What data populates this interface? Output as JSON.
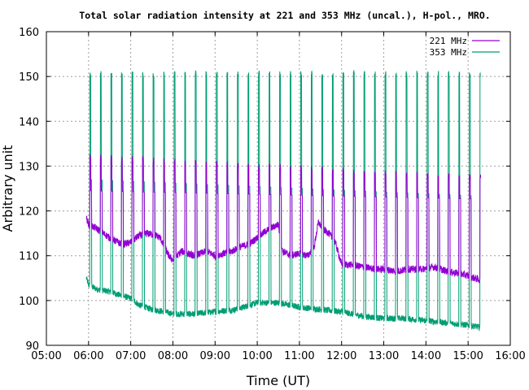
{
  "chart_data": {
    "type": "line",
    "title": "Total solar radiation intensity at 221 and 353 MHz (uncal.), H-pol., MRO.",
    "xlabel": "Time (UT)",
    "ylabel": "Arbitrary unit",
    "x_unit": "hours UT",
    "xlim": [
      5,
      16
    ],
    "ylim": [
      90,
      160
    ],
    "xticks": [
      5,
      6,
      7,
      8,
      9,
      10,
      11,
      12,
      13,
      14,
      15,
      16
    ],
    "xtick_labels": [
      "05:00",
      "06:00",
      "07:00",
      "08:00",
      "09:00",
      "10:00",
      "11:00",
      "12:00",
      "13:00",
      "14:00",
      "15:00",
      "16:00"
    ],
    "yticks": [
      90,
      100,
      110,
      120,
      130,
      140,
      150,
      160
    ],
    "ytick_labels": [
      "90",
      "100",
      "110",
      "120",
      "130",
      "140",
      "150",
      "160"
    ],
    "grid": true,
    "legend_position": "top-right",
    "calibration_spike_times": [
      6.05,
      6.3,
      6.55,
      6.8,
      7.05,
      7.3,
      7.55,
      7.8,
      8.05,
      8.3,
      8.55,
      8.8,
      9.05,
      9.3,
      9.55,
      9.8,
      10.05,
      10.3,
      10.55,
      10.8,
      11.05,
      11.3,
      11.55,
      11.8,
      12.05,
      12.3,
      12.55,
      12.8,
      13.05,
      13.3,
      13.55,
      13.8,
      14.05,
      14.3,
      14.55,
      14.8,
      15.05,
      15.3
    ],
    "series": [
      {
        "name": "221 MHz",
        "color": "#9400d3",
        "x": [
          5.95,
          6.0,
          6.2,
          6.5,
          6.8,
          7.0,
          7.2,
          7.4,
          7.6,
          7.7,
          7.8,
          7.9,
          8.0,
          8.2,
          8.5,
          8.8,
          9.0,
          9.2,
          9.4,
          9.6,
          9.8,
          10.0,
          10.2,
          10.4,
          10.5,
          10.6,
          10.8,
          11.0,
          11.2,
          11.35,
          11.45,
          11.55,
          11.7,
          11.85,
          12.0,
          12.2,
          12.5,
          12.8,
          13.0,
          13.3,
          13.6,
          13.9,
          14.2,
          14.5,
          14.8,
          15.0,
          15.3
        ],
        "y": [
          118.5,
          117,
          116,
          114,
          112.5,
          113,
          114.5,
          115,
          114.5,
          114,
          112,
          110,
          109,
          111,
          110,
          111,
          110,
          110.5,
          111,
          112,
          112.5,
          114,
          115.5,
          116.5,
          117,
          111,
          110,
          110.5,
          110,
          112,
          117.5,
          116,
          115,
          113,
          108,
          108,
          107.5,
          107,
          107,
          106.5,
          107,
          107,
          107.5,
          106.5,
          106,
          105.5,
          104.5
        ]
      },
      {
        "name": "353 MHz",
        "color": "#009e73",
        "x": [
          5.95,
          6.0,
          6.2,
          6.5,
          6.8,
          7.0,
          7.2,
          7.5,
          7.8,
          8.0,
          8.5,
          9.0,
          9.5,
          10.0,
          10.5,
          11.0,
          11.5,
          12.0,
          12.5,
          13.0,
          13.5,
          14.0,
          14.5,
          15.0,
          15.3
        ],
        "y": [
          105,
          103.5,
          102.5,
          102,
          101,
          100.5,
          99,
          98,
          97.5,
          97,
          97,
          97.5,
          98,
          99.5,
          99.5,
          98.5,
          98,
          97.5,
          96.5,
          96,
          96,
          95.5,
          95,
          94.5,
          94
        ]
      }
    ]
  }
}
